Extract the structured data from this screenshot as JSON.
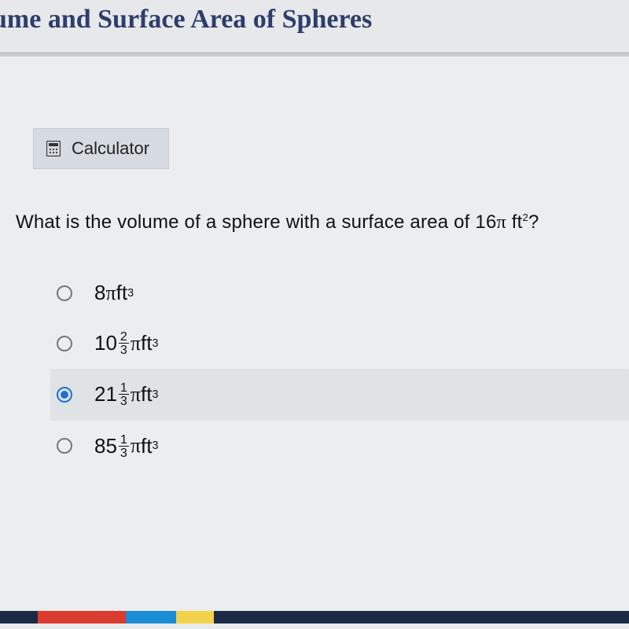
{
  "header": {
    "title": "ume and Surface Area of Spheres"
  },
  "calculator": {
    "label": "Calculator"
  },
  "question": {
    "stem_prefix": "What is the volume of a sphere with a surface area of ",
    "stem_value": "16",
    "stem_unit_base": " ft",
    "stem_unit_exp": "2",
    "stem_suffix": "?"
  },
  "options": [
    {
      "whole": "8",
      "frac_n": "",
      "frac_d": "",
      "unit_base": " ft",
      "unit_exp": "3",
      "selected": false
    },
    {
      "whole": "10",
      "frac_n": "2",
      "frac_d": "3",
      "unit_base": " ft",
      "unit_exp": "3",
      "selected": false
    },
    {
      "whole": "21",
      "frac_n": "1",
      "frac_d": "3",
      "unit_base": " ft",
      "unit_exp": "3",
      "selected": true
    },
    {
      "whole": "85",
      "frac_n": "1",
      "frac_d": "3",
      "unit_base": " ft",
      "unit_exp": "3",
      "selected": false
    }
  ],
  "colors": {
    "title": "#2d3e6b",
    "accent": "#1f6fd6",
    "page_bg": "#ecedee",
    "calc_bg": "#d6dbe2",
    "selected_bg": "#e0e3e5"
  }
}
